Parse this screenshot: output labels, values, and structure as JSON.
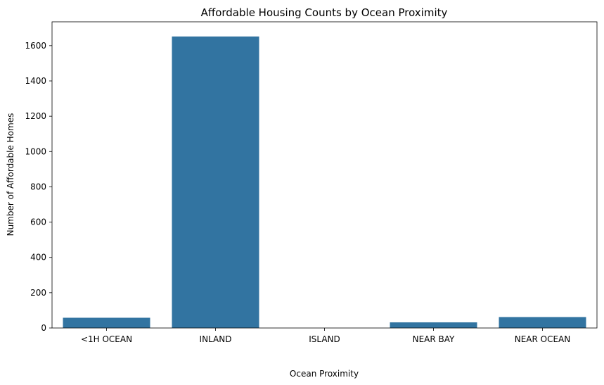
{
  "chart_data": {
    "type": "bar",
    "title": "Affordable Housing Counts by Ocean Proximity",
    "xlabel": "Ocean Proximity",
    "ylabel": "Number of Affordable Homes",
    "categories": [
      "<1H OCEAN",
      "INLAND",
      "ISLAND",
      "NEAR BAY",
      "NEAR OCEAN"
    ],
    "values": [
      58,
      1652,
      0,
      32,
      62
    ],
    "ylim": [
      0,
      1735
    ],
    "yticks": [
      0,
      200,
      400,
      600,
      800,
      1000,
      1200,
      1400,
      1600
    ],
    "bar_color": "#3274a1",
    "grid": false,
    "legend": "none"
  }
}
